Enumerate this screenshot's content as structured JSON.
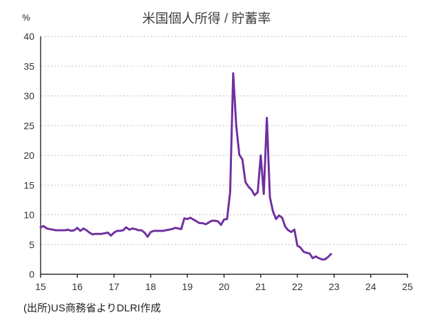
{
  "chart_data": {
    "type": "line",
    "title": "米国個人所得 / 貯蓄率",
    "unit_label": "%",
    "source": "(出所)US商務省よりDLRI作成",
    "xlim": [
      15,
      25
    ],
    "ylim": [
      0,
      40
    ],
    "x_ticks": [
      15,
      16,
      17,
      18,
      19,
      20,
      21,
      22,
      23,
      24,
      25
    ],
    "y_ticks": [
      0,
      5,
      10,
      15,
      20,
      25,
      30,
      35,
      40
    ],
    "grid": "horizontal-dotted",
    "legend": "none",
    "series_color": "#7030a0",
    "series": [
      {
        "x": [
          15.0,
          15.083,
          15.167,
          15.25,
          15.333,
          15.417,
          15.5,
          15.583,
          15.667,
          15.75,
          15.833,
          15.917,
          16.0,
          16.083,
          16.167,
          16.25,
          16.333,
          16.417,
          16.5,
          16.583,
          16.667,
          16.75,
          16.833,
          16.917,
          17.0,
          17.083,
          17.167,
          17.25,
          17.333,
          17.417,
          17.5,
          17.583,
          17.667,
          17.75,
          17.833,
          17.917,
          18.0,
          18.083,
          18.167,
          18.25,
          18.333,
          18.417,
          18.5,
          18.583,
          18.667,
          18.75,
          18.833,
          18.917,
          19.0,
          19.083,
          19.167,
          19.25,
          19.333,
          19.417,
          19.5,
          19.583,
          19.667,
          19.75,
          19.833,
          19.917,
          20.0,
          20.083,
          20.167,
          20.25,
          20.333,
          20.417,
          20.5,
          20.583,
          20.667,
          20.75,
          20.833,
          20.917,
          21.0,
          21.083,
          21.167,
          21.25,
          21.333,
          21.417,
          21.5,
          21.583,
          21.667,
          21.75,
          21.833,
          21.917,
          22.0,
          22.083,
          22.167,
          22.25,
          22.333,
          22.417,
          22.5,
          22.583,
          22.667,
          22.75,
          22.833,
          22.917
        ],
        "y": [
          7.9,
          8.1,
          7.7,
          7.6,
          7.5,
          7.4,
          7.4,
          7.4,
          7.4,
          7.5,
          7.3,
          7.4,
          7.8,
          7.3,
          7.7,
          7.4,
          7.0,
          6.7,
          6.8,
          6.8,
          6.8,
          6.9,
          7.0,
          6.5,
          7.0,
          7.3,
          7.3,
          7.4,
          7.9,
          7.5,
          7.7,
          7.6,
          7.4,
          7.4,
          7.0,
          6.3,
          7.1,
          7.3,
          7.3,
          7.3,
          7.3,
          7.4,
          7.5,
          7.6,
          7.8,
          7.7,
          7.6,
          9.4,
          9.3,
          9.5,
          9.2,
          8.9,
          8.6,
          8.6,
          8.4,
          8.7,
          9.0,
          9.0,
          8.9,
          8.3,
          9.2,
          9.3,
          13.9,
          33.8,
          25.0,
          20.1,
          19.3,
          15.5,
          14.7,
          14.2,
          13.3,
          13.8,
          20.0,
          13.5,
          26.3,
          13.0,
          10.6,
          9.3,
          9.9,
          9.5,
          8.0,
          7.4,
          7.1,
          7.5,
          4.8,
          4.5,
          3.8,
          3.6,
          3.5,
          2.7,
          3.0,
          2.7,
          2.5,
          2.5,
          2.9,
          3.4
        ]
      }
    ]
  }
}
